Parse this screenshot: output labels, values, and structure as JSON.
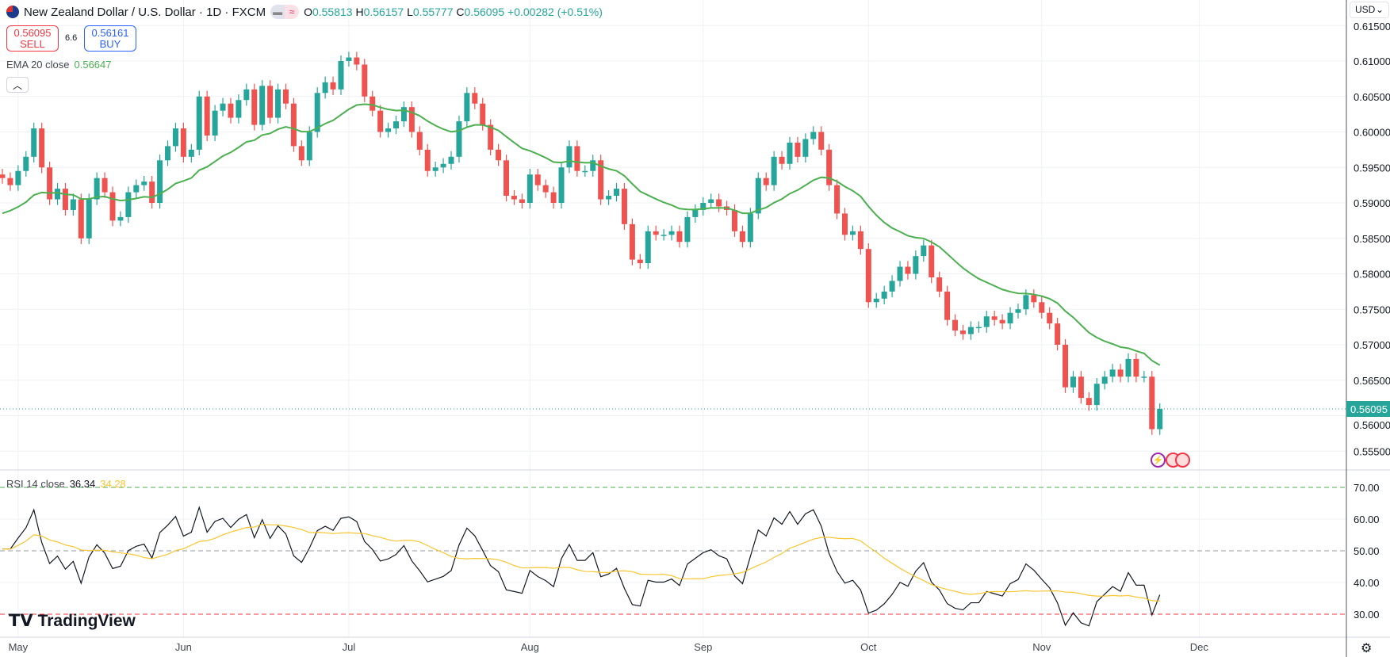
{
  "header": {
    "title": "New Zealand Dollar / U.S. Dollar · 1D · FXCM",
    "o_label": "O",
    "o": "0.55813",
    "h_label": "H",
    "h": "0.56157",
    "l_label": "L",
    "l": "0.55777",
    "c_label": "C",
    "c": "0.56095",
    "change": "+0.00282 (+0.51%)"
  },
  "trade": {
    "sell_price": "0.56095",
    "sell_label": "SELL",
    "spread": "6.6",
    "buy_price": "0.56161",
    "buy_label": "BUY"
  },
  "ema": {
    "label": "EMA 20 close",
    "value": "0.56647"
  },
  "rsi": {
    "label": "RSI 14 close",
    "value": "36.34",
    "ma_value": "34.28"
  },
  "axis": {
    "currency": "USD",
    "current_price": "0.56095"
  },
  "brand": "TradingView",
  "colors": {
    "up": "#26a69a",
    "down": "#ef5350",
    "ema": "#4caf50",
    "rsi": "#131722",
    "rsi_ma": "#f7c631"
  },
  "chart_data": {
    "type": "candlestick",
    "title": "New Zealand Dollar / U.S. Dollar · 1D · FXCM",
    "x_ticks": [
      "May",
      "Jun",
      "Jul",
      "Aug",
      "Sep",
      "Oct",
      "Nov",
      "Dec"
    ],
    "x_tick_bars": [
      2,
      23,
      44,
      67,
      89,
      110,
      132,
      152
    ],
    "y_ticks": [
      "0.55500",
      "0.56000",
      "0.56500",
      "0.57000",
      "0.57500",
      "0.58000",
      "0.58500",
      "0.59000",
      "0.59500",
      "0.60000",
      "0.60500",
      "0.61000",
      "0.61500"
    ],
    "ylim": [
      0.5535,
      0.6155
    ],
    "closes": [
      0.5935,
      0.5925,
      0.5945,
      0.5965,
      0.6005,
      0.595,
      0.5905,
      0.592,
      0.589,
      0.5905,
      0.585,
      0.5905,
      0.5935,
      0.5915,
      0.5875,
      0.588,
      0.5915,
      0.5925,
      0.593,
      0.59,
      0.596,
      0.598,
      0.6005,
      0.5965,
      0.5975,
      0.605,
      0.5995,
      0.603,
      0.604,
      0.602,
      0.6045,
      0.606,
      0.601,
      0.6065,
      0.602,
      0.606,
      0.604,
      0.598,
      0.596,
      0.6,
      0.6055,
      0.607,
      0.606,
      0.61,
      0.6105,
      0.6095,
      0.605,
      0.603,
      0.6,
      0.6005,
      0.6015,
      0.6035,
      0.6,
      0.5975,
      0.5945,
      0.595,
      0.5955,
      0.5965,
      0.6015,
      0.6055,
      0.604,
      0.601,
      0.5975,
      0.596,
      0.591,
      0.5905,
      0.59,
      0.594,
      0.5925,
      0.5915,
      0.59,
      0.595,
      0.598,
      0.5945,
      0.5945,
      0.596,
      0.5905,
      0.591,
      0.592,
      0.587,
      0.582,
      0.5815,
      0.586,
      0.5855,
      0.5855,
      0.586,
      0.5845,
      0.588,
      0.589,
      0.59,
      0.5905,
      0.5895,
      0.589,
      0.586,
      0.5845,
      0.5885,
      0.5935,
      0.5925,
      0.5965,
      0.5955,
      0.5985,
      0.5965,
      0.599,
      0.6,
      0.5975,
      0.5925,
      0.5885,
      0.5855,
      0.586,
      0.5835,
      0.576,
      0.5765,
      0.5775,
      0.579,
      0.581,
      0.58,
      0.5825,
      0.584,
      0.5795,
      0.5775,
      0.5735,
      0.572,
      0.5715,
      0.5725,
      0.5725,
      0.574,
      0.5735,
      0.573,
      0.5745,
      0.575,
      0.577,
      0.576,
      0.5745,
      0.573,
      0.57,
      0.564,
      0.5655,
      0.5625,
      0.5615,
      0.5645,
      0.5655,
      0.5665,
      0.5655,
      0.568,
      0.5655,
      0.5655,
      0.5581,
      0.56095
    ],
    "wick": 0.0008,
    "ema_period": 20,
    "rsi": {
      "period": 14,
      "ma_period": 14,
      "ylim": [
        20,
        80
      ],
      "levels": [
        70,
        50,
        30
      ],
      "y_ticks": [
        "70.00",
        "60.00",
        "50.00",
        "40.00",
        "30.00"
      ]
    }
  }
}
